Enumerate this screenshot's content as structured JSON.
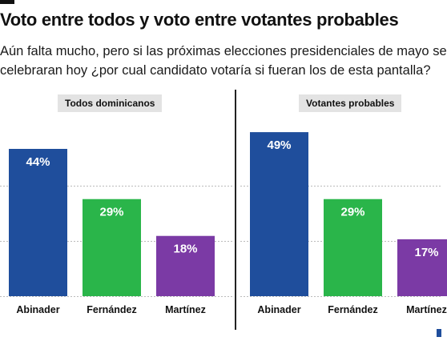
{
  "header": {
    "title": "Voto entre todos y voto entre votantes probables",
    "subtitle_line1": "Aún falta mucho, pero si las próximas elecciones presidenciales de mayo se",
    "subtitle_line2": "celebraran hoy ¿por cual candidato votaría si fueran los de esta pantalla?"
  },
  "chart_data": [
    {
      "type": "bar",
      "title": "Todos dominicanos",
      "categories": [
        "Abinader",
        "Fernández",
        "Martínez"
      ],
      "values": [
        44,
        29,
        18
      ],
      "value_labels": [
        "44%",
        "29%",
        "18%"
      ],
      "colors": [
        "#1f4e9c",
        "#2ab54a",
        "#7b3aa5"
      ],
      "ylim": [
        0,
        55
      ],
      "grid": true
    },
    {
      "type": "bar",
      "title": "Votantes probables",
      "categories": [
        "Abinader",
        "Fernández",
        "Martínez"
      ],
      "values": [
        49,
        29,
        17
      ],
      "value_labels": [
        "49%",
        "29%",
        "17%"
      ],
      "colors": [
        "#1f4e9c",
        "#2ab54a",
        "#7b3aa5"
      ],
      "ylim": [
        0,
        55
      ],
      "grid": true
    }
  ],
  "colors": {
    "abinader": "#1f4e9c",
    "fernandez": "#2ab54a",
    "martinez": "#7b3aa5",
    "panel_label_bg": "#e3e3e3",
    "gridline": "#bbbbbb"
  }
}
